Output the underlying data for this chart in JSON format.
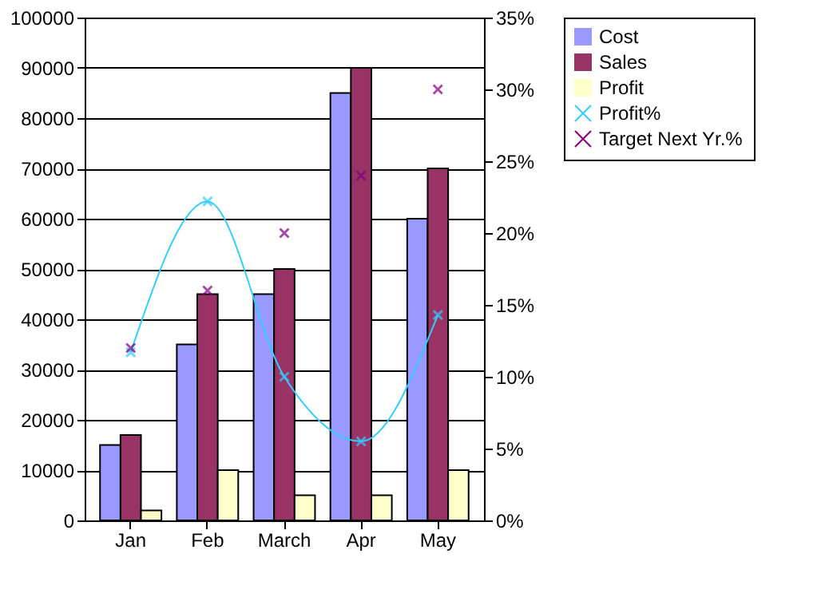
{
  "chart_data": {
    "type": "bar",
    "categories": [
      "Jan",
      "Feb",
      "March",
      "Apr",
      "May"
    ],
    "ylim": [
      0,
      100000
    ],
    "yticks": [
      0,
      10000,
      20000,
      30000,
      40000,
      50000,
      60000,
      70000,
      80000,
      90000,
      100000
    ],
    "y2lim": [
      0,
      35
    ],
    "y2ticks": [
      {
        "value": 0,
        "label": "0%"
      },
      {
        "value": 5,
        "label": "5%"
      },
      {
        "value": 10,
        "label": "10%"
      },
      {
        "value": 15,
        "label": "15%"
      },
      {
        "value": 20,
        "label": "20%"
      },
      {
        "value": 25,
        "label": "25%"
      },
      {
        "value": 30,
        "label": "30%"
      },
      {
        "value": 35,
        "label": "35%"
      }
    ],
    "grid": "y",
    "legend": "right",
    "series": [
      {
        "name": "Cost",
        "color": "#9999ff",
        "values": [
          15000,
          35000,
          45000,
          85000,
          60000
        ]
      },
      {
        "name": "Sales",
        "color": "#993366",
        "values": [
          17000,
          45000,
          50000,
          90000,
          70000
        ]
      },
      {
        "name": "Profit",
        "color": "#ffffcc",
        "values": [
          2000,
          10000,
          5000,
          5000,
          10000
        ]
      },
      {
        "name": "Profit%",
        "color": "#33ccff",
        "type": "line",
        "axis": "y2",
        "marker": "cross",
        "line_style": "solid",
        "values": [
          11.7,
          22.2,
          10.0,
          5.5,
          14.3
        ]
      },
      {
        "name": "Target Next Yr.%",
        "color": "#800080",
        "type": "scatter",
        "axis": "y2",
        "marker": "cross",
        "values": [
          12,
          16,
          20,
          24,
          30
        ]
      }
    ]
  }
}
